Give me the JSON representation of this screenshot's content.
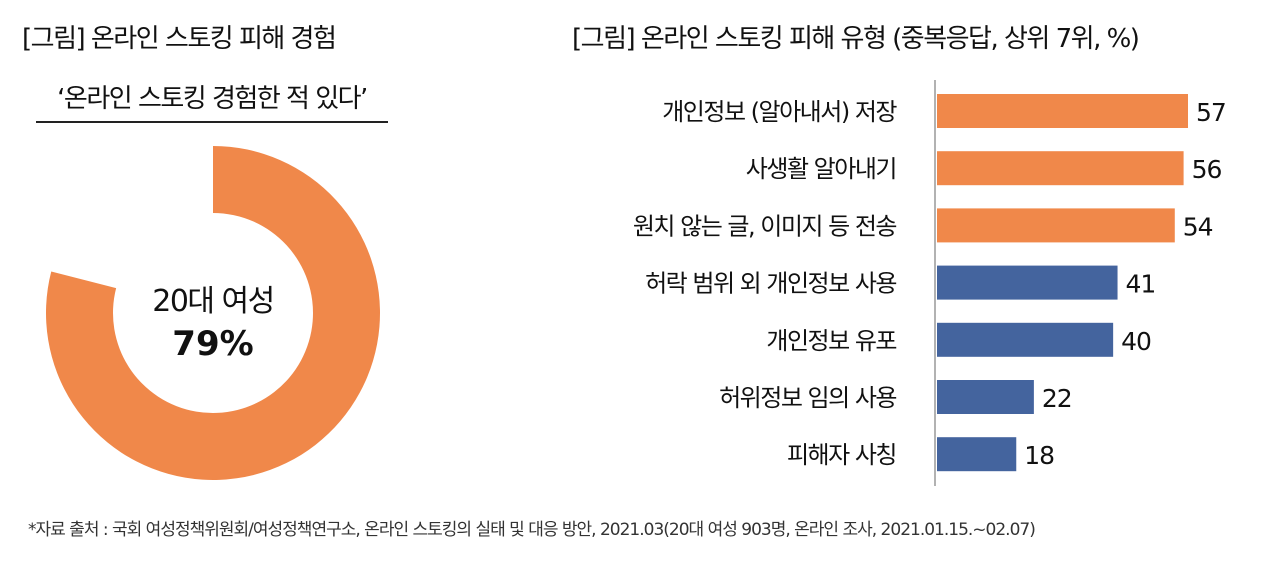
{
  "chart_data": [
    {
      "type": "pie",
      "title": "[그림] 온라인 스토킹 피해 경험",
      "subtitle": "‘온라인 스토킹 경험한 적 있다’",
      "center_label": "20대 여성",
      "center_value": "79%",
      "value": 79,
      "color": "#F0884A"
    },
    {
      "type": "bar",
      "orientation": "horizontal",
      "title": "[그림] 온라인 스토킹 피해 유형 (중복응답, 상위 7위, %)",
      "categories": [
        "개인정보 (알아내서) 저장",
        "사생활 알아내기",
        "원치 않는 글, 이미지 등 전송",
        "허락 범위 외 개인정보 사용",
        "개인정보 유포",
        "허위정보 임의 사용",
        "피해자 사칭"
      ],
      "values": [
        57,
        56,
        54,
        41,
        40,
        22,
        18
      ],
      "colors": [
        "#F0884A",
        "#F0884A",
        "#F0884A",
        "#44649E",
        "#44649E",
        "#44649E",
        "#44649E"
      ],
      "xlim": [
        0,
        60
      ],
      "grid": false
    }
  ],
  "footer": "*자료 출처 : 국회 여성정책위원회/여성정책연구소, 온라인 스토킹의 실태 및 대응 방안, 2021.03(20대 여성 903명, 온라인 조사, 2021.01.15.~02.07)"
}
